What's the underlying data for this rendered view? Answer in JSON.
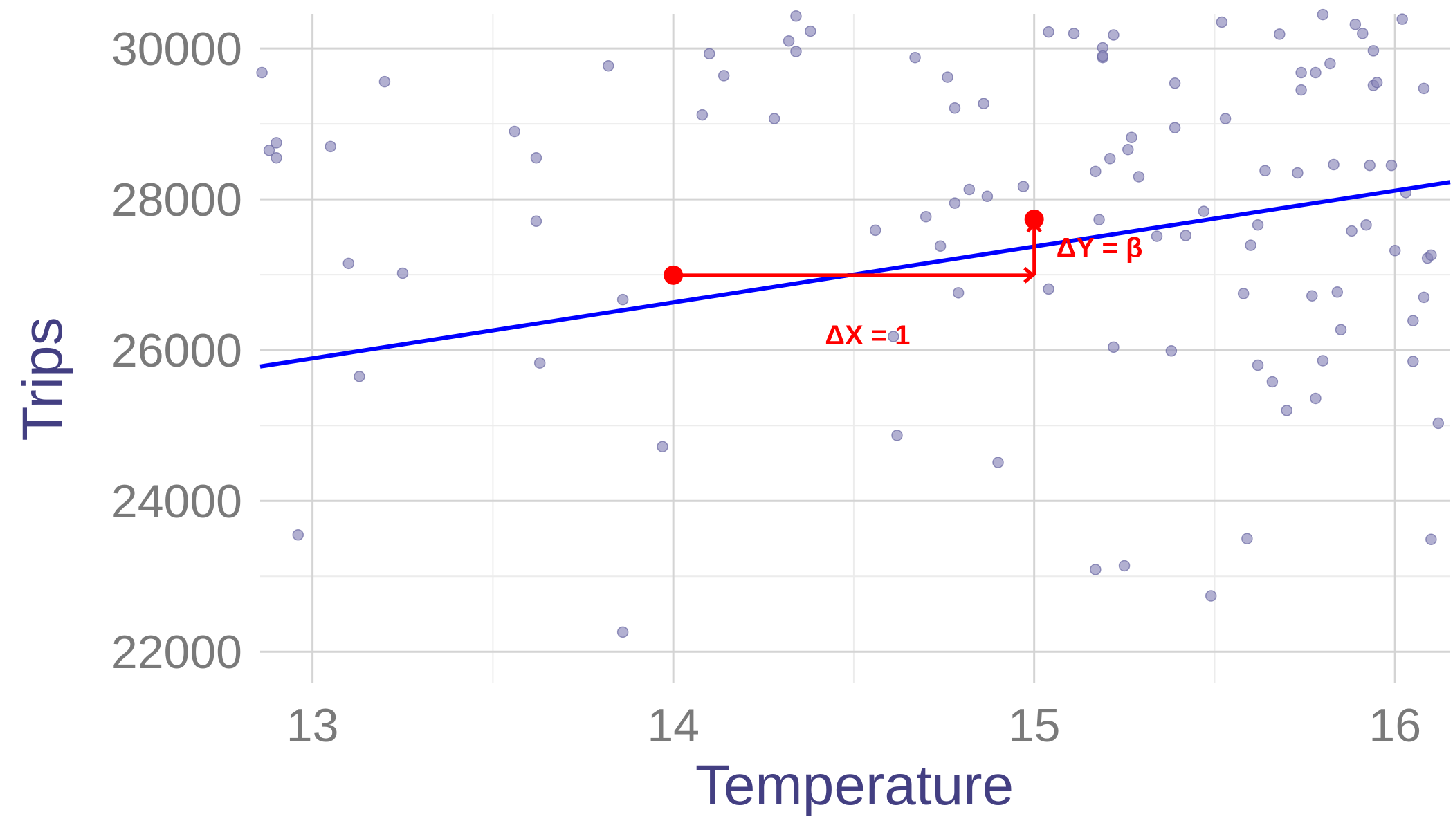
{
  "chart_data": {
    "type": "scatter",
    "title": "",
    "xlabel": "Temperature",
    "ylabel": "Trips",
    "xlim": [
      12.855,
      16.153
    ],
    "ylim": [
      21580,
      30460
    ],
    "x_ticks": [
      13,
      14,
      15,
      16
    ],
    "y_ticks": [
      22000,
      24000,
      26000,
      28000,
      30000
    ],
    "x_tick_labels": [
      "13",
      "14",
      "15",
      "16"
    ],
    "y_tick_labels": [
      "22000",
      "24000",
      "26000",
      "28000",
      "30000"
    ],
    "grid": true,
    "legend": "none",
    "colors": {
      "points": "#8886b9",
      "fit_line": "#0000ff",
      "annotation": "#ff0000",
      "axis_title": "#433f82",
      "tick_label": "#7a7a7a",
      "grid_major": "#d4d4d4",
      "grid_minor": "#ececec"
    },
    "regression_line": {
      "intercept": 16252.6,
      "slope": 741.4
    },
    "annotation": {
      "point_a": {
        "x": 14,
        "y": 26994
      },
      "point_b": {
        "x": 15,
        "y": 27735
      },
      "dx_label": "ΔX = 1",
      "dy_label": "ΔY = β"
    },
    "points": [
      {
        "x": 12.86,
        "y": 29680
      },
      {
        "x": 12.88,
        "y": 28650
      },
      {
        "x": 12.9,
        "y": 28750
      },
      {
        "x": 12.9,
        "y": 28550
      },
      {
        "x": 12.96,
        "y": 23550
      },
      {
        "x": 13.05,
        "y": 28700
      },
      {
        "x": 13.1,
        "y": 27150
      },
      {
        "x": 13.13,
        "y": 25650
      },
      {
        "x": 13.2,
        "y": 29560
      },
      {
        "x": 13.25,
        "y": 27020
      },
      {
        "x": 13.56,
        "y": 28900
      },
      {
        "x": 13.62,
        "y": 28550
      },
      {
        "x": 13.62,
        "y": 27710
      },
      {
        "x": 13.63,
        "y": 25830
      },
      {
        "x": 13.82,
        "y": 29770
      },
      {
        "x": 13.86,
        "y": 26670
      },
      {
        "x": 13.86,
        "y": 22260
      },
      {
        "x": 13.97,
        "y": 24720
      },
      {
        "x": 14.08,
        "y": 29120
      },
      {
        "x": 14.1,
        "y": 29930
      },
      {
        "x": 14.14,
        "y": 29640
      },
      {
        "x": 14.28,
        "y": 29070
      },
      {
        "x": 14.32,
        "y": 30100
      },
      {
        "x": 14.34,
        "y": 29960
      },
      {
        "x": 14.34,
        "y": 30430
      },
      {
        "x": 14.38,
        "y": 30230
      },
      {
        "x": 14.56,
        "y": 27590
      },
      {
        "x": 14.61,
        "y": 26180
      },
      {
        "x": 14.62,
        "y": 24870
      },
      {
        "x": 14.67,
        "y": 29880
      },
      {
        "x": 14.7,
        "y": 27770
      },
      {
        "x": 14.74,
        "y": 27380
      },
      {
        "x": 14.76,
        "y": 29620
      },
      {
        "x": 14.78,
        "y": 27950
      },
      {
        "x": 14.78,
        "y": 29210
      },
      {
        "x": 14.79,
        "y": 26760
      },
      {
        "x": 14.82,
        "y": 28130
      },
      {
        "x": 14.86,
        "y": 29270
      },
      {
        "x": 14.87,
        "y": 28040
      },
      {
        "x": 14.9,
        "y": 24510
      },
      {
        "x": 14.97,
        "y": 28170
      },
      {
        "x": 15.04,
        "y": 26810
      },
      {
        "x": 15.04,
        "y": 30220
      },
      {
        "x": 15.11,
        "y": 30200
      },
      {
        "x": 15.17,
        "y": 28370
      },
      {
        "x": 15.17,
        "y": 23090
      },
      {
        "x": 15.18,
        "y": 27730
      },
      {
        "x": 15.19,
        "y": 30010
      },
      {
        "x": 15.19,
        "y": 29880
      },
      {
        "x": 15.19,
        "y": 29900
      },
      {
        "x": 15.21,
        "y": 28540
      },
      {
        "x": 15.22,
        "y": 26040
      },
      {
        "x": 15.22,
        "y": 30180
      },
      {
        "x": 15.25,
        "y": 23140
      },
      {
        "x": 15.26,
        "y": 28660
      },
      {
        "x": 15.27,
        "y": 28820
      },
      {
        "x": 15.29,
        "y": 28300
      },
      {
        "x": 15.34,
        "y": 27510
      },
      {
        "x": 15.38,
        "y": 25990
      },
      {
        "x": 15.39,
        "y": 28950
      },
      {
        "x": 15.39,
        "y": 29540
      },
      {
        "x": 15.42,
        "y": 27520
      },
      {
        "x": 15.47,
        "y": 27840
      },
      {
        "x": 15.49,
        "y": 22740
      },
      {
        "x": 15.52,
        "y": 30350
      },
      {
        "x": 15.53,
        "y": 29070
      },
      {
        "x": 15.58,
        "y": 26750
      },
      {
        "x": 15.59,
        "y": 23500
      },
      {
        "x": 15.6,
        "y": 27390
      },
      {
        "x": 15.62,
        "y": 27660
      },
      {
        "x": 15.62,
        "y": 25800
      },
      {
        "x": 15.64,
        "y": 28380
      },
      {
        "x": 15.66,
        "y": 25580
      },
      {
        "x": 15.68,
        "y": 30190
      },
      {
        "x": 15.7,
        "y": 25200
      },
      {
        "x": 15.73,
        "y": 28350
      },
      {
        "x": 15.74,
        "y": 29680
      },
      {
        "x": 15.74,
        "y": 29450
      },
      {
        "x": 15.77,
        "y": 26720
      },
      {
        "x": 15.78,
        "y": 29680
      },
      {
        "x": 15.78,
        "y": 25360
      },
      {
        "x": 15.8,
        "y": 25860
      },
      {
        "x": 15.8,
        "y": 30450
      },
      {
        "x": 15.82,
        "y": 29800
      },
      {
        "x": 15.83,
        "y": 28460
      },
      {
        "x": 15.84,
        "y": 26770
      },
      {
        "x": 15.85,
        "y": 26270
      },
      {
        "x": 15.88,
        "y": 27580
      },
      {
        "x": 15.89,
        "y": 30320
      },
      {
        "x": 15.91,
        "y": 30200
      },
      {
        "x": 15.92,
        "y": 27660
      },
      {
        "x": 15.93,
        "y": 28450
      },
      {
        "x": 15.94,
        "y": 29970
      },
      {
        "x": 15.94,
        "y": 29510
      },
      {
        "x": 15.95,
        "y": 29550
      },
      {
        "x": 15.99,
        "y": 28450
      },
      {
        "x": 16.0,
        "y": 27320
      },
      {
        "x": 16.02,
        "y": 30390
      },
      {
        "x": 16.03,
        "y": 28090
      },
      {
        "x": 16.05,
        "y": 26390
      },
      {
        "x": 16.05,
        "y": 25850
      },
      {
        "x": 16.08,
        "y": 26700
      },
      {
        "x": 16.08,
        "y": 29470
      },
      {
        "x": 16.09,
        "y": 27220
      },
      {
        "x": 16.1,
        "y": 27260
      },
      {
        "x": 16.1,
        "y": 23490
      },
      {
        "x": 16.12,
        "y": 25030
      }
    ]
  }
}
